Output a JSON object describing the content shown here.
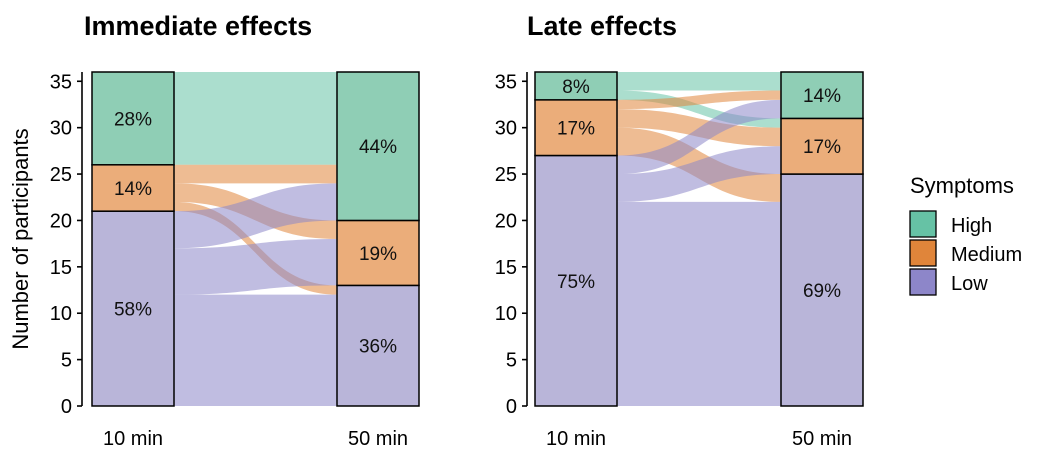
{
  "chart_data": [
    {
      "type": "alluvial",
      "title": "Immediate effects",
      "ylabel": "Number of participants",
      "yticks": [
        0,
        5,
        10,
        15,
        20,
        25,
        30,
        35
      ],
      "ylim": [
        0,
        36
      ],
      "x": [
        "10 min",
        "50 min"
      ],
      "categories_order_bottom_to_top": [
        "Low",
        "Medium",
        "High"
      ],
      "stacks": [
        {
          "x": "10 min",
          "High": 10,
          "Medium": 5,
          "Low": 21,
          "labels": {
            "High": "28%",
            "Medium": "14%",
            "Low": "58%"
          }
        },
        {
          "x": "50 min",
          "High": 16,
          "Medium": 7,
          "Low": 13,
          "labels": {
            "High": "44%",
            "Medium": "19%",
            "Low": "36%"
          }
        }
      ],
      "flows": [
        {
          "from": "High",
          "to": "High",
          "value": 10
        },
        {
          "from": "Medium",
          "to": "High",
          "value": 2
        },
        {
          "from": "Medium",
          "to": "Medium",
          "value": 2
        },
        {
          "from": "Medium",
          "to": "Low",
          "value": 1
        },
        {
          "from": "Low",
          "to": "High",
          "value": 4
        },
        {
          "from": "Low",
          "to": "Medium",
          "value": 5
        },
        {
          "from": "Low",
          "to": "Low",
          "value": 12
        }
      ]
    },
    {
      "type": "alluvial",
      "title": "Late effects",
      "ylabel": "",
      "yticks": [
        0,
        5,
        10,
        15,
        20,
        25,
        30,
        35
      ],
      "ylim": [
        0,
        36
      ],
      "x": [
        "10 min",
        "50 min"
      ],
      "categories_order_bottom_to_top": [
        "Low",
        "Medium",
        "High"
      ],
      "stacks": [
        {
          "x": "10 min",
          "High": 3,
          "Medium": 6,
          "Low": 27,
          "labels": {
            "High": "8%",
            "Medium": "17%",
            "Low": "75%"
          }
        },
        {
          "x": "50 min",
          "High": 5,
          "Medium": 6,
          "Low": 25,
          "labels": {
            "High": "14%",
            "Medium": "17%",
            "Low": "69%"
          }
        }
      ],
      "flows": [
        {
          "from": "High",
          "to": "High",
          "value": 2
        },
        {
          "from": "High",
          "to": "Medium",
          "value": 1
        },
        {
          "from": "Medium",
          "to": "High",
          "value": 1
        },
        {
          "from": "Medium",
          "to": "Medium",
          "value": 2
        },
        {
          "from": "Medium",
          "to": "Low",
          "value": 3
        },
        {
          "from": "Low",
          "to": "High",
          "value": 2
        },
        {
          "from": "Low",
          "to": "Medium",
          "value": 3
        },
        {
          "from": "Low",
          "to": "Low",
          "value": 22
        }
      ]
    }
  ],
  "legend": {
    "title": "Symptoms",
    "placement": "right",
    "items": [
      {
        "label": "High",
        "color": "#66c2a5"
      },
      {
        "label": "Medium",
        "color": "#e0853a"
      },
      {
        "label": "Low",
        "color": "#8d86c9"
      }
    ]
  },
  "colors": {
    "High": {
      "box": "#8fceb5",
      "flow": "#66c2a5"
    },
    "Medium": {
      "box": "#ebad7a",
      "flow": "#e0853a"
    },
    "Low": {
      "box": "#b9b5d9",
      "flow": "#8d86c9"
    }
  }
}
